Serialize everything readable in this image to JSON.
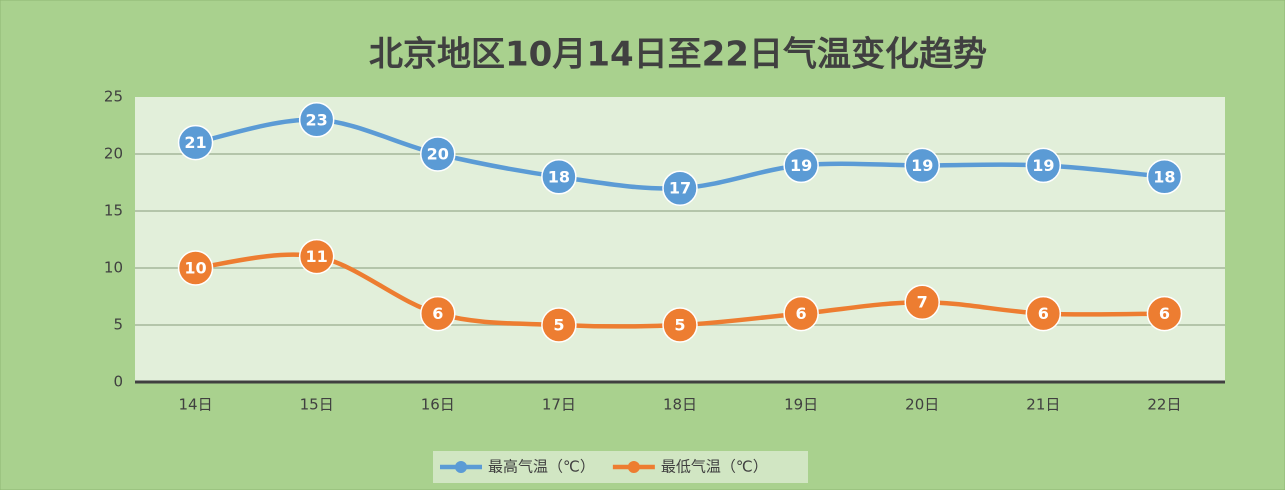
{
  "chart_data": {
    "type": "line",
    "title": "北京地区10月14日至22日气温变化趋势",
    "categories": [
      "14日",
      "15日",
      "16日",
      "17日",
      "18日",
      "19日",
      "20日",
      "21日",
      "22日"
    ],
    "series": [
      {
        "name": "最高气温（℃）",
        "color": "#5b9bd5",
        "values": [
          21,
          23,
          20,
          18,
          17,
          19,
          19,
          19,
          18
        ]
      },
      {
        "name": "最低气温（℃）",
        "color": "#ed7d31",
        "values": [
          10,
          11,
          6,
          5,
          5,
          6,
          7,
          6,
          6
        ]
      }
    ],
    "ylim": [
      0,
      25
    ],
    "yticks": [
      0,
      5,
      10,
      15,
      20,
      25
    ],
    "grid": true,
    "smooth": true,
    "legend": "bottom"
  }
}
